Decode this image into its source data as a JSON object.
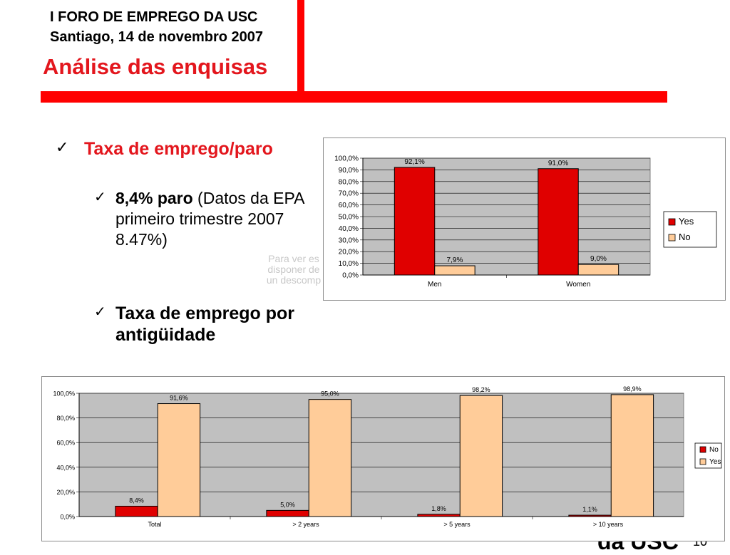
{
  "header": {
    "line1": "I FORO DE EMPREGO DA USC",
    "line2": "Santiago, 14 de novembro 2007",
    "title": "Análise das enquisas"
  },
  "bullets": {
    "level1": "Taxa de emprego/paro",
    "level2_bold": "8,4% paro",
    "level2_rest": "(Datos da EPA primeiro trimestre 2007 8.47%)",
    "level3": "Taxa de emprego por  antigüidade"
  },
  "ghost_text": [
    "Para ver es",
    "disponer de",
    "un descomp"
  ],
  "footer": {
    "text": "da USC",
    "slide_number": "10"
  },
  "colors": {
    "red": "#e00000",
    "peach": "#ffcc99",
    "plot_bg": "#c0c0c0",
    "accent": "#ff0000"
  },
  "chart_data": [
    {
      "type": "bar",
      "categories": [
        "Men",
        "Women"
      ],
      "series": [
        {
          "name": "Yes",
          "values": [
            92.1,
            91.0
          ],
          "labels": [
            "92,1%",
            "91,0%"
          ],
          "color": "#e00000"
        },
        {
          "name": "No",
          "values": [
            7.9,
            9.0
          ],
          "labels": [
            "7,9%",
            "9,0%"
          ],
          "color": "#ffcc99"
        }
      ],
      "ylim": [
        0,
        100
      ],
      "yticks": [
        "0,0%",
        "10,0%",
        "20,0%",
        "30,0%",
        "40,0%",
        "50,0%",
        "60,0%",
        "70,0%",
        "80,0%",
        "90,0%",
        "100,0%"
      ],
      "grid": true,
      "legend": "right"
    },
    {
      "type": "bar",
      "categories": [
        "Total",
        "> 2 years",
        "> 5 years",
        "> 10 years"
      ],
      "series": [
        {
          "name": "No",
          "values": [
            8.4,
            5.0,
            1.8,
            1.1
          ],
          "labels": [
            "8,4%",
            "5,0%",
            "1,8%",
            "1,1%"
          ],
          "color": "#e00000"
        },
        {
          "name": "Yes",
          "values": [
            91.6,
            95.0,
            98.2,
            98.9
          ],
          "labels": [
            "91,6%",
            "95,0%",
            "98,2%",
            "98,9%"
          ],
          "color": "#ffcc99"
        }
      ],
      "ylim": [
        0,
        100
      ],
      "yticks": [
        "0,0%",
        "20,0%",
        "40,0%",
        "60,0%",
        "80,0%",
        "100,0%"
      ],
      "grid": true,
      "legend": "right"
    }
  ]
}
